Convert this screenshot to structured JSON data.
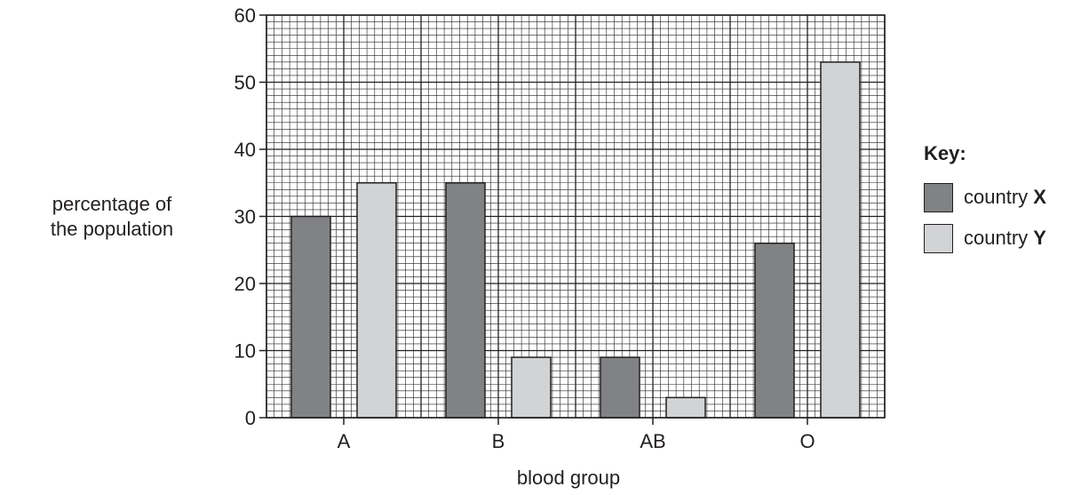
{
  "chart_data": {
    "type": "bar",
    "xlabel": "blood group",
    "ylabel": [
      "percentage of",
      "the population"
    ],
    "categories": [
      "A",
      "B",
      "AB",
      "O"
    ],
    "series": [
      {
        "name": "country X",
        "key_text": "country",
        "key_letter": "X",
        "color": "#818284",
        "values": [
          30,
          35,
          9,
          26
        ]
      },
      {
        "name": "country Y",
        "key_text": "country",
        "key_letter": "Y",
        "color": "#d1d3d4",
        "values": [
          35,
          9,
          3,
          53
        ]
      }
    ],
    "ylim": [
      0,
      60
    ],
    "yticks": [
      0,
      10,
      20,
      30,
      40,
      50,
      60
    ],
    "grid": true,
    "legend_title": "Key:",
    "legend_position": "right"
  }
}
